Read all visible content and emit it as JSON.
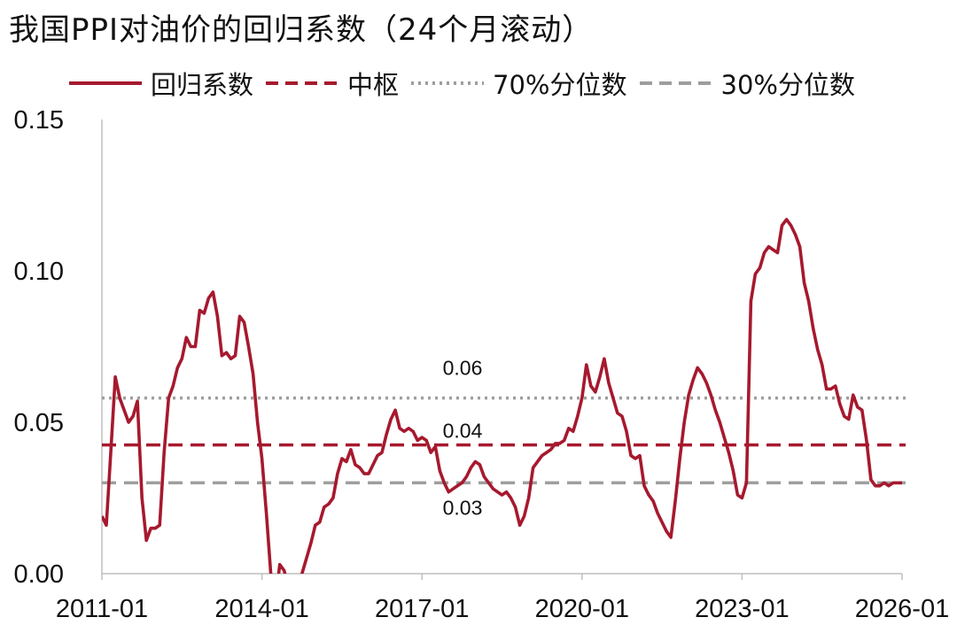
{
  "title": "我国PPI对油价的回归系数（24个月滚动）",
  "chart_data": {
    "type": "line",
    "title": "我国PPI对油价的回归系数（24个月滚动）",
    "xlabel": "",
    "ylabel": "",
    "x_range": [
      "2011-01",
      "2026-01"
    ],
    "ylim": [
      0,
      0.15
    ],
    "y_ticks": [
      "0.00",
      "0.05",
      "0.10",
      "0.15"
    ],
    "x_ticks": [
      "2011-01",
      "2014-01",
      "2017-01",
      "2020-01",
      "2023-01",
      "2026-01"
    ],
    "grid": false,
    "legend": "top",
    "series": [
      {
        "name": "回归系数",
        "style": "solid",
        "color": "#A6192E",
        "points": [
          [
            "2011-01",
            0.019
          ],
          [
            "2011-02",
            0.016
          ],
          [
            "2011-03",
            0.04
          ],
          [
            "2011-04",
            0.065
          ],
          [
            "2011-05",
            0.058
          ],
          [
            "2011-06",
            0.054
          ],
          [
            "2011-07",
            0.05
          ],
          [
            "2011-08",
            0.052
          ],
          [
            "2011-09",
            0.057
          ],
          [
            "2011-10",
            0.025
          ],
          [
            "2011-11",
            0.011
          ],
          [
            "2011-12",
            0.015
          ],
          [
            "2012-01",
            0.015
          ],
          [
            "2012-02",
            0.016
          ],
          [
            "2012-03",
            0.04
          ],
          [
            "2012-04",
            0.058
          ],
          [
            "2012-05",
            0.062
          ],
          [
            "2012-06",
            0.068
          ],
          [
            "2012-07",
            0.071
          ],
          [
            "2012-08",
            0.078
          ],
          [
            "2012-09",
            0.075
          ],
          [
            "2012-10",
            0.075
          ],
          [
            "2012-11",
            0.087
          ],
          [
            "2012-12",
            0.086
          ],
          [
            "2013-01",
            0.091
          ],
          [
            "2013-02",
            0.093
          ],
          [
            "2013-03",
            0.085
          ],
          [
            "2013-04",
            0.072
          ],
          [
            "2013-05",
            0.073
          ],
          [
            "2013-06",
            0.071
          ],
          [
            "2013-07",
            0.072
          ],
          [
            "2013-08",
            0.085
          ],
          [
            "2013-09",
            0.083
          ],
          [
            "2013-10",
            0.075
          ],
          [
            "2013-11",
            0.066
          ],
          [
            "2013-12",
            0.05
          ],
          [
            "2014-01",
            0.038
          ],
          [
            "2014-02",
            0.02
          ],
          [
            "2014-03",
            0.0
          ],
          [
            "2014-04",
            -0.01
          ],
          [
            "2014-05",
            0.003
          ],
          [
            "2014-06",
            0.001
          ],
          [
            "2014-07",
            -0.005
          ],
          [
            "2014-08",
            -0.012
          ],
          [
            "2014-09",
            -0.005
          ],
          [
            "2014-10",
            0.0
          ],
          [
            "2014-11",
            0.005
          ],
          [
            "2014-12",
            0.01
          ],
          [
            "2015-01",
            0.016
          ],
          [
            "2015-02",
            0.017
          ],
          [
            "2015-03",
            0.022
          ],
          [
            "2015-04",
            0.023
          ],
          [
            "2015-05",
            0.025
          ],
          [
            "2015-06",
            0.033
          ],
          [
            "2015-07",
            0.038
          ],
          [
            "2015-08",
            0.037
          ],
          [
            "2015-09",
            0.041
          ],
          [
            "2015-10",
            0.036
          ],
          [
            "2015-11",
            0.035
          ],
          [
            "2015-12",
            0.033
          ],
          [
            "2016-01",
            0.033
          ],
          [
            "2016-02",
            0.036
          ],
          [
            "2016-03",
            0.039
          ],
          [
            "2016-04",
            0.04
          ],
          [
            "2016-05",
            0.046
          ],
          [
            "2016-06",
            0.051
          ],
          [
            "2016-07",
            0.054
          ],
          [
            "2016-08",
            0.048
          ],
          [
            "2016-09",
            0.047
          ],
          [
            "2016-10",
            0.048
          ],
          [
            "2016-11",
            0.047
          ],
          [
            "2016-12",
            0.044
          ],
          [
            "2017-01",
            0.045
          ],
          [
            "2017-02",
            0.044
          ],
          [
            "2017-03",
            0.04
          ],
          [
            "2017-04",
            0.042
          ],
          [
            "2017-05",
            0.034
          ],
          [
            "2017-06",
            0.03
          ],
          [
            "2017-07",
            0.027
          ],
          [
            "2017-08",
            0.028
          ],
          [
            "2017-09",
            0.029
          ],
          [
            "2017-10",
            0.03
          ],
          [
            "2017-11",
            0.032
          ],
          [
            "2017-12",
            0.035
          ],
          [
            "2018-01",
            0.037
          ],
          [
            "2018-02",
            0.036
          ],
          [
            "2018-03",
            0.032
          ],
          [
            "2018-04",
            0.03
          ],
          [
            "2018-05",
            0.028
          ],
          [
            "2018-06",
            0.027
          ],
          [
            "2018-07",
            0.026
          ],
          [
            "2018-08",
            0.027
          ],
          [
            "2018-09",
            0.025
          ],
          [
            "2018-10",
            0.022
          ],
          [
            "2018-11",
            0.016
          ],
          [
            "2018-12",
            0.019
          ],
          [
            "2019-01",
            0.025
          ],
          [
            "2019-02",
            0.035
          ],
          [
            "2019-03",
            0.037
          ],
          [
            "2019-04",
            0.039
          ],
          [
            "2019-05",
            0.04
          ],
          [
            "2019-06",
            0.041
          ],
          [
            "2019-07",
            0.043
          ],
          [
            "2019-08",
            0.043
          ],
          [
            "2019-09",
            0.044
          ],
          [
            "2019-10",
            0.048
          ],
          [
            "2019-11",
            0.047
          ],
          [
            "2019-12",
            0.052
          ],
          [
            "2020-01",
            0.058
          ],
          [
            "2020-02",
            0.069
          ],
          [
            "2020-03",
            0.062
          ],
          [
            "2020-04",
            0.06
          ],
          [
            "2020-05",
            0.065
          ],
          [
            "2020-06",
            0.071
          ],
          [
            "2020-07",
            0.063
          ],
          [
            "2020-08",
            0.058
          ],
          [
            "2020-09",
            0.053
          ],
          [
            "2020-10",
            0.052
          ],
          [
            "2020-11",
            0.047
          ],
          [
            "2020-12",
            0.039
          ],
          [
            "2021-01",
            0.038
          ],
          [
            "2021-02",
            0.039
          ],
          [
            "2021-03",
            0.029
          ],
          [
            "2021-04",
            0.026
          ],
          [
            "2021-05",
            0.024
          ],
          [
            "2021-06",
            0.02
          ],
          [
            "2021-07",
            0.017
          ],
          [
            "2021-08",
            0.014
          ],
          [
            "2021-09",
            0.012
          ],
          [
            "2021-10",
            0.024
          ],
          [
            "2021-11",
            0.038
          ],
          [
            "2021-12",
            0.05
          ],
          [
            "2022-01",
            0.059
          ],
          [
            "2022-02",
            0.064
          ],
          [
            "2022-03",
            0.068
          ],
          [
            "2022-04",
            0.066
          ],
          [
            "2022-05",
            0.063
          ],
          [
            "2022-06",
            0.059
          ],
          [
            "2022-07",
            0.054
          ],
          [
            "2022-08",
            0.05
          ],
          [
            "2022-09",
            0.045
          ],
          [
            "2022-10",
            0.04
          ],
          [
            "2022-11",
            0.034
          ],
          [
            "2022-12",
            0.026
          ],
          [
            "2023-01",
            0.025
          ],
          [
            "2023-02",
            0.03
          ],
          [
            "2023-03",
            0.09
          ],
          [
            "2023-04",
            0.099
          ],
          [
            "2023-05",
            0.101
          ],
          [
            "2023-06",
            0.106
          ],
          [
            "2023-07",
            0.108
          ],
          [
            "2023-08",
            0.107
          ],
          [
            "2023-09",
            0.106
          ],
          [
            "2023-10",
            0.115
          ],
          [
            "2023-11",
            0.117
          ],
          [
            "2023-12",
            0.115
          ],
          [
            "2024-01",
            0.112
          ],
          [
            "2024-02",
            0.108
          ],
          [
            "2024-03",
            0.096
          ],
          [
            "2024-04",
            0.09
          ],
          [
            "2024-05",
            0.081
          ],
          [
            "2024-06",
            0.074
          ],
          [
            "2024-07",
            0.069
          ],
          [
            "2024-08",
            0.061
          ],
          [
            "2024-09",
            0.061
          ],
          [
            "2024-10",
            0.062
          ],
          [
            "2024-11",
            0.056
          ],
          [
            "2024-12",
            0.052
          ],
          [
            "2025-01",
            0.051
          ],
          [
            "2025-02",
            0.059
          ],
          [
            "2025-03",
            0.055
          ],
          [
            "2025-04",
            0.054
          ],
          [
            "2025-05",
            0.044
          ],
          [
            "2025-06",
            0.031
          ],
          [
            "2025-07",
            0.029
          ],
          [
            "2025-08",
            0.029
          ],
          [
            "2025-09",
            0.03
          ],
          [
            "2025-10",
            0.029
          ],
          [
            "2025-11",
            0.03
          ],
          [
            "2025-12",
            0.03
          ],
          [
            "2026-01",
            0.03
          ]
        ]
      },
      {
        "name": "中枢",
        "style": "dashed",
        "color": "#A6192E",
        "value": 0.0425,
        "label": "0.04"
      },
      {
        "name": "70%分位数",
        "style": "dotted",
        "color": "#9E9E9E",
        "value": 0.058,
        "label": "0.06"
      },
      {
        "name": "30%分位数",
        "style": "dashed",
        "color": "#9E9E9E",
        "value": 0.03,
        "label": "0.03"
      }
    ]
  }
}
